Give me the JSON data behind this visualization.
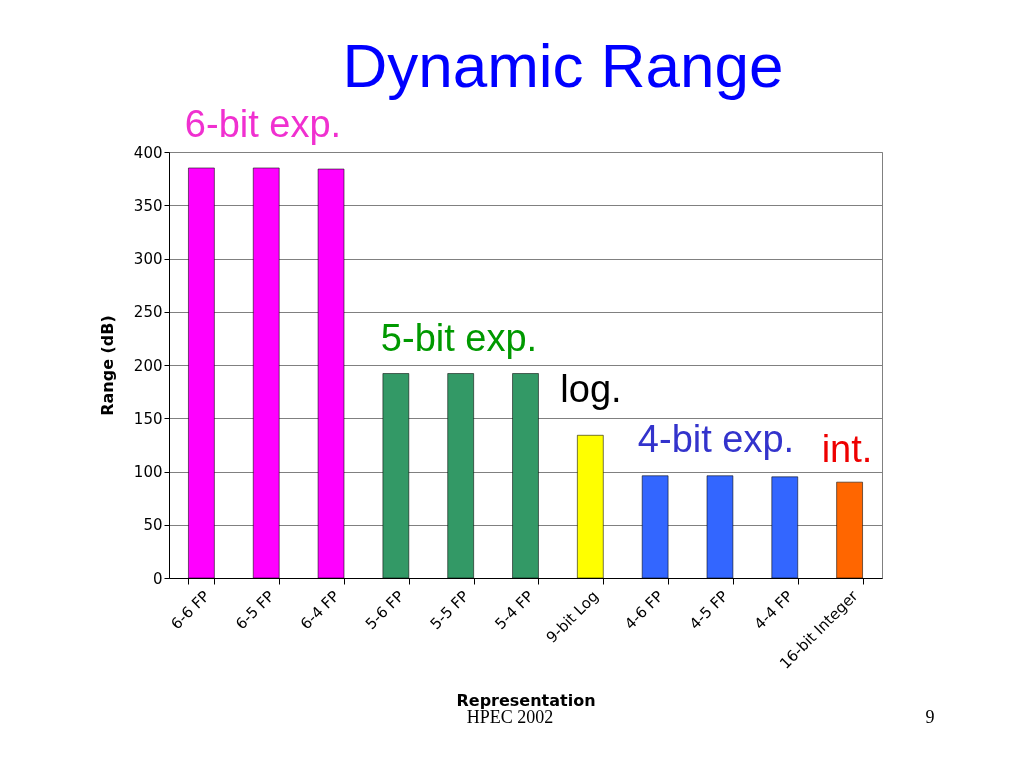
{
  "chart_data": {
    "type": "bar",
    "title": "Dynamic Range",
    "xlabel": "Representation",
    "ylabel": "Range (dB)",
    "categories": [
      "6-6 FP",
      "6-5 FP",
      "6-4 FP",
      "5-6 FP",
      "5-5 FP",
      "5-4 FP",
      "9-bit Log",
      "4-6 FP",
      "4-5 FP",
      "4-4 FP",
      "16-bit Integer"
    ],
    "values": [
      385,
      385,
      384,
      192,
      192,
      192,
      134,
      96,
      96,
      95,
      90
    ],
    "colors": [
      "#ff00ff",
      "#ff00ff",
      "#ff00ff",
      "#339966",
      "#339966",
      "#339966",
      "#ffff00",
      "#3366ff",
      "#3366ff",
      "#3366ff",
      "#ff6600"
    ],
    "ylim": [
      0,
      400
    ],
    "yticks": [
      0,
      50,
      100,
      150,
      200,
      250,
      300,
      350,
      400
    ],
    "grid": "y",
    "annotations": [
      "6-bit exp.",
      "5-bit exp.",
      "log.",
      "4-bit exp.",
      "int.",
      "HPEC 2002",
      "9"
    ]
  }
}
